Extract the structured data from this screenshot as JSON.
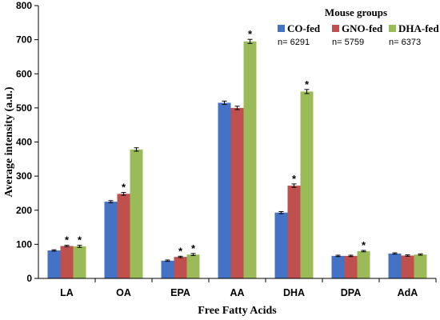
{
  "chart_data": {
    "type": "bar",
    "xlabel": "Free Fatty Acids",
    "ylabel": "Average intensity (a.u.)",
    "ylim": [
      0,
      800
    ],
    "yticks": [
      0,
      100,
      200,
      300,
      400,
      500,
      600,
      700,
      800
    ],
    "grid": false,
    "legend_title": "Mouse groups",
    "legend_placement": "top-right",
    "categories": [
      "LA",
      "OA",
      "EPA",
      "AA",
      "DHA",
      "DPA",
      "AdA"
    ],
    "series": [
      {
        "name": "CO-fed",
        "n_label": "n= 6291",
        "color": "#4472C4",
        "values": [
          82,
          225,
          52,
          515,
          193,
          66,
          73
        ],
        "errors": [
          2,
          3,
          2,
          5,
          3,
          2,
          2
        ],
        "significant": [
          false,
          false,
          false,
          false,
          false,
          false,
          false
        ]
      },
      {
        "name": "GNO-fed",
        "n_label": "n= 5759",
        "color": "#C0504D",
        "values": [
          95,
          248,
          63,
          500,
          272,
          66,
          67
        ],
        "errors": [
          2,
          4,
          2,
          5,
          5,
          2,
          2
        ],
        "significant": [
          true,
          true,
          true,
          false,
          true,
          false,
          false
        ]
      },
      {
        "name": "DHA-fed",
        "n_label": "n= 6373",
        "color": "#9BBB59",
        "values": [
          94,
          378,
          70,
          695,
          548,
          80,
          70
        ],
        "errors": [
          3,
          5,
          3,
          6,
          6,
          2,
          2
        ],
        "significant": [
          true,
          false,
          true,
          true,
          true,
          true,
          false
        ]
      }
    ],
    "significance_marker": "*"
  }
}
